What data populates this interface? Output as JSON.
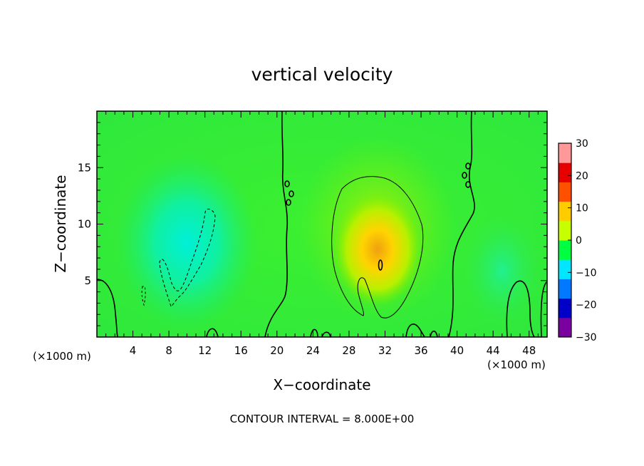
{
  "chart_data": {
    "type": "heatmap",
    "title": "vertical velocity",
    "xlabel": "X−coordinate",
    "ylabel": "Z−coordinate",
    "x_unit_left": "(×1000 m)",
    "x_unit_right": "(×1000 m)",
    "footer": "CONTOUR INTERVAL = 8.000E+00",
    "xlim": [
      0,
      50
    ],
    "ylim": [
      0,
      20
    ],
    "x_ticks": [
      4,
      8,
      12,
      16,
      20,
      24,
      28,
      32,
      36,
      40,
      44,
      48
    ],
    "y_ticks": [
      5,
      10,
      15
    ],
    "colorbar": {
      "min": -30,
      "max": 30,
      "ticks": [
        30,
        20,
        10,
        0,
        -10,
        -20,
        -30
      ],
      "tick_labels": [
        "30",
        "20",
        "10",
        "0",
        "−10",
        "−20",
        "−30"
      ],
      "colors": [
        "#7a00a0",
        "#0000c8",
        "#0078ff",
        "#00e6ff",
        "#00ff40",
        "#c8ff00",
        "#ffcc00",
        "#ff5000",
        "#e60000",
        "#ff9999"
      ]
    },
    "background_value": 3,
    "features": [
      {
        "name": "updraft",
        "x": 31,
        "z": 8,
        "rx": 3.2,
        "rz": 4.5,
        "peak": 16
      },
      {
        "name": "downdraft",
        "x": 10.5,
        "z": 8,
        "rx": 3.5,
        "rz": 5,
        "peak": -11
      },
      {
        "name": "downdraft",
        "x": 45,
        "z": 5.5,
        "rx": 2.5,
        "rz": 4,
        "peak": -5
      }
    ]
  }
}
